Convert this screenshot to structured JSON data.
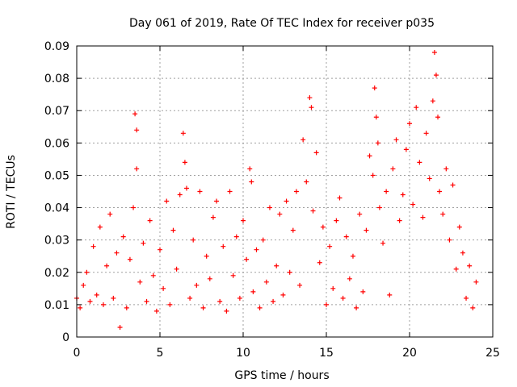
{
  "chart_data": {
    "type": "scatter",
    "title": "Day 061 of 2019, Rate Of TEC Index for receiver p035",
    "xlabel": "GPS time / hours",
    "ylabel": "ROTI / TECUs",
    "xlim": [
      0,
      25
    ],
    "ylim": [
      0,
      0.09
    ],
    "x_ticks": [
      "0",
      "5",
      "10",
      "15",
      "20",
      "25"
    ],
    "y_ticks": [
      "0",
      "0.01",
      "0.02",
      "0.03",
      "0.04",
      "0.05",
      "0.06",
      "0.07",
      "0.08",
      "0.09"
    ],
    "x_tick_values": [
      0,
      5,
      10,
      15,
      20,
      25
    ],
    "y_tick_values": [
      0,
      0.01,
      0.02,
      0.03,
      0.04,
      0.05,
      0.06,
      0.07,
      0.08,
      0.09
    ],
    "grid": true,
    "marker": "+",
    "series_color": "#ff0000",
    "series": [
      {
        "name": "ROTI",
        "points": [
          [
            0.0,
            0.012
          ],
          [
            0.2,
            0.009
          ],
          [
            0.4,
            0.016
          ],
          [
            0.6,
            0.02
          ],
          [
            0.8,
            0.011
          ],
          [
            1.0,
            0.028
          ],
          [
            1.2,
            0.013
          ],
          [
            1.4,
            0.034
          ],
          [
            1.6,
            0.01
          ],
          [
            1.8,
            0.022
          ],
          [
            2.0,
            0.038
          ],
          [
            2.2,
            0.012
          ],
          [
            2.4,
            0.026
          ],
          [
            2.6,
            0.003
          ],
          [
            2.8,
            0.031
          ],
          [
            3.0,
            0.009
          ],
          [
            3.2,
            0.024
          ],
          [
            3.4,
            0.04
          ],
          [
            3.5,
            0.069
          ],
          [
            3.6,
            0.064
          ],
          [
            3.6,
            0.052
          ],
          [
            3.8,
            0.017
          ],
          [
            4.0,
            0.029
          ],
          [
            4.2,
            0.011
          ],
          [
            4.4,
            0.036
          ],
          [
            4.6,
            0.019
          ],
          [
            4.8,
            0.008
          ],
          [
            5.0,
            0.027
          ],
          [
            5.2,
            0.015
          ],
          [
            5.4,
            0.042
          ],
          [
            5.6,
            0.01
          ],
          [
            5.8,
            0.033
          ],
          [
            6.0,
            0.021
          ],
          [
            6.2,
            0.044
          ],
          [
            6.4,
            0.063
          ],
          [
            6.5,
            0.054
          ],
          [
            6.6,
            0.046
          ],
          [
            6.8,
            0.012
          ],
          [
            7.0,
            0.03
          ],
          [
            7.2,
            0.016
          ],
          [
            7.4,
            0.045
          ],
          [
            7.6,
            0.009
          ],
          [
            7.8,
            0.025
          ],
          [
            8.0,
            0.018
          ],
          [
            8.2,
            0.037
          ],
          [
            8.4,
            0.042
          ],
          [
            8.6,
            0.011
          ],
          [
            8.8,
            0.028
          ],
          [
            9.0,
            0.008
          ],
          [
            9.2,
            0.045
          ],
          [
            9.4,
            0.019
          ],
          [
            9.6,
            0.031
          ],
          [
            9.8,
            0.012
          ],
          [
            10.0,
            0.036
          ],
          [
            10.2,
            0.024
          ],
          [
            10.4,
            0.052
          ],
          [
            10.5,
            0.048
          ],
          [
            10.6,
            0.014
          ],
          [
            10.8,
            0.027
          ],
          [
            11.0,
            0.009
          ],
          [
            11.2,
            0.03
          ],
          [
            11.4,
            0.017
          ],
          [
            11.6,
            0.04
          ],
          [
            11.8,
            0.011
          ],
          [
            12.0,
            0.022
          ],
          [
            12.2,
            0.038
          ],
          [
            12.4,
            0.013
          ],
          [
            12.6,
            0.042
          ],
          [
            12.8,
            0.02
          ],
          [
            13.0,
            0.033
          ],
          [
            13.2,
            0.045
          ],
          [
            13.4,
            0.016
          ],
          [
            13.6,
            0.061
          ],
          [
            13.8,
            0.048
          ],
          [
            14.0,
            0.074
          ],
          [
            14.1,
            0.071
          ],
          [
            14.2,
            0.039
          ],
          [
            14.4,
            0.057
          ],
          [
            14.6,
            0.023
          ],
          [
            14.8,
            0.034
          ],
          [
            15.0,
            0.01
          ],
          [
            15.2,
            0.028
          ],
          [
            15.4,
            0.015
          ],
          [
            15.6,
            0.036
          ],
          [
            15.8,
            0.043
          ],
          [
            16.0,
            0.012
          ],
          [
            16.2,
            0.031
          ],
          [
            16.4,
            0.018
          ],
          [
            16.6,
            0.025
          ],
          [
            16.8,
            0.009
          ],
          [
            17.0,
            0.038
          ],
          [
            17.2,
            0.014
          ],
          [
            17.4,
            0.033
          ],
          [
            17.6,
            0.056
          ],
          [
            17.8,
            0.05
          ],
          [
            17.9,
            0.077
          ],
          [
            18.0,
            0.068
          ],
          [
            18.1,
            0.06
          ],
          [
            18.2,
            0.04
          ],
          [
            18.4,
            0.029
          ],
          [
            18.6,
            0.045
          ],
          [
            18.8,
            0.013
          ],
          [
            19.0,
            0.052
          ],
          [
            19.2,
            0.061
          ],
          [
            19.4,
            0.036
          ],
          [
            19.6,
            0.044
          ],
          [
            19.8,
            0.058
          ],
          [
            20.0,
            0.066
          ],
          [
            20.2,
            0.041
          ],
          [
            20.4,
            0.071
          ],
          [
            20.6,
            0.054
          ],
          [
            20.8,
            0.037
          ],
          [
            21.0,
            0.063
          ],
          [
            21.2,
            0.049
          ],
          [
            21.4,
            0.073
          ],
          [
            21.5,
            0.088
          ],
          [
            21.6,
            0.081
          ],
          [
            21.7,
            0.068
          ],
          [
            21.8,
            0.045
          ],
          [
            22.0,
            0.038
          ],
          [
            22.2,
            0.052
          ],
          [
            22.4,
            0.03
          ],
          [
            22.6,
            0.047
          ],
          [
            22.8,
            0.021
          ],
          [
            23.0,
            0.034
          ],
          [
            23.2,
            0.026
          ],
          [
            23.4,
            0.012
          ],
          [
            23.6,
            0.022
          ],
          [
            23.8,
            0.009
          ],
          [
            24.0,
            0.017
          ]
        ]
      }
    ]
  }
}
